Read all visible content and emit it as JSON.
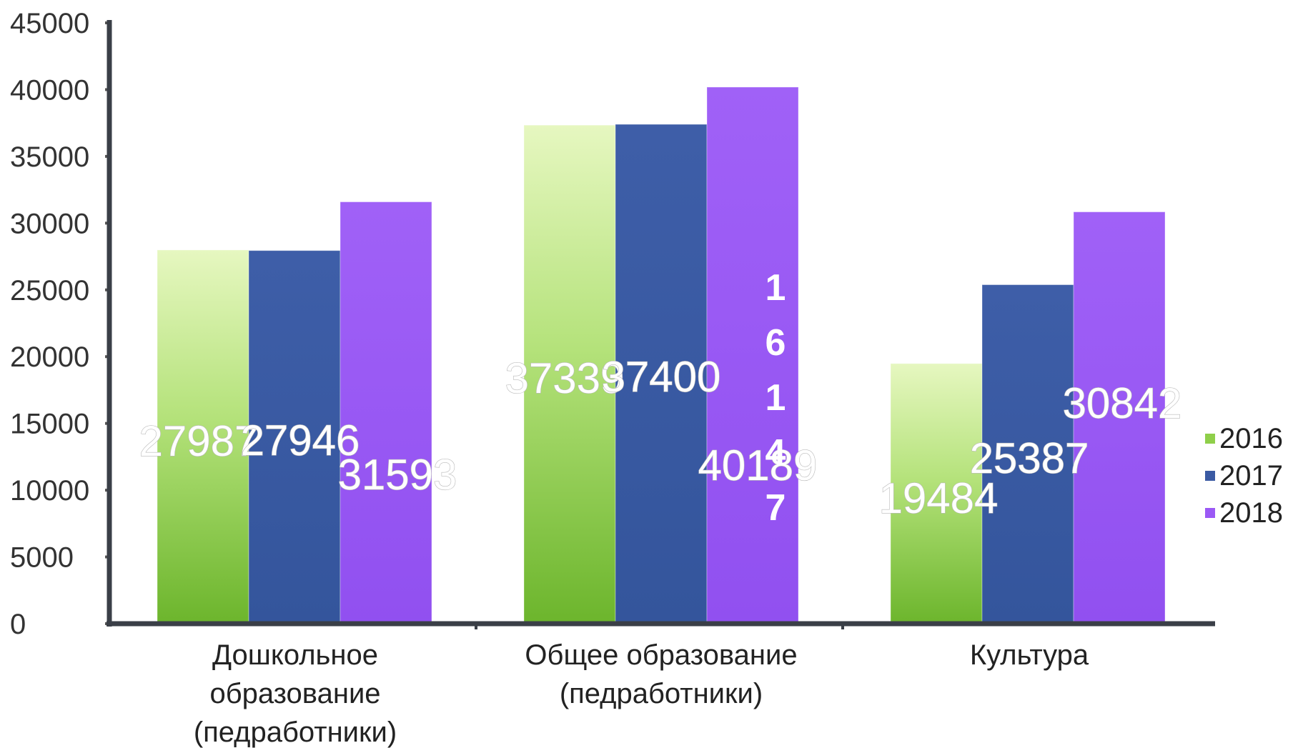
{
  "chart_data": {
    "type": "bar",
    "categories": [
      [
        "Дошкольное",
        "образование",
        "(педработники)"
      ],
      [
        "Общее образование",
        "(педработники)"
      ],
      [
        "Культура"
      ]
    ],
    "series": [
      {
        "name": "2016",
        "values": [
          27987,
          37339,
          19484
        ],
        "labels": [
          "27987",
          "37339",
          "19484"
        ],
        "color": "#8fcf4a"
      },
      {
        "name": "2017",
        "values": [
          27946,
          37400,
          25387
        ],
        "labels": [
          "27946",
          "37400",
          "25387"
        ],
        "color": "#3b5aa3"
      },
      {
        "name": "2018",
        "values": [
          31593,
          40189,
          30842
        ],
        "labels": [
          "31593",
          "40189",
          "30842"
        ],
        "color": "#9b59f5"
      }
    ],
    "ylim": [
      0,
      45000
    ],
    "yticks": [
      "0",
      "5000",
      "10000",
      "15000",
      "20000",
      "25000",
      "30000",
      "35000",
      "40000",
      "45000"
    ],
    "vertical_annotation": "16147",
    "legend_position": "right",
    "grid": false
  }
}
